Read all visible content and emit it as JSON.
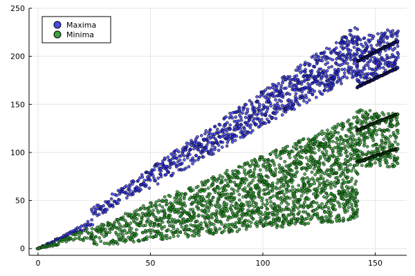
{
  "chart_data": {
    "type": "scatter",
    "title": "",
    "xlabel": "",
    "ylabel": "",
    "xlim": [
      -4,
      164
    ],
    "ylim": [
      -7,
      250
    ],
    "xticks": [
      0,
      50,
      100,
      150
    ],
    "yticks": [
      0,
      50,
      100,
      150,
      200,
      250
    ],
    "grid": true,
    "legend_position": "top-left",
    "series": [
      {
        "name": "Maxima",
        "color": "#2a2ae0",
        "description_points": [
          {
            "x": 0,
            "y": 0
          },
          {
            "x": 10,
            "y": 12
          },
          {
            "x": 24,
            "y": 30
          },
          {
            "x": 50,
            "y": 72
          },
          {
            "x": 75,
            "y": 113
          },
          {
            "x": 100,
            "y": 158
          },
          {
            "x": 125,
            "y": 195
          },
          {
            "x": 140,
            "y": 225
          },
          {
            "x": 160,
            "y": 216
          }
        ],
        "bands": [
          {
            "x": [
              0,
              24
            ],
            "low": [
              0,
              22
            ],
            "high": [
              0,
              30
            ]
          },
          {
            "x": [
              24,
              142
            ],
            "low": [
              30,
              180
            ],
            "high": [
              42,
              232
            ]
          },
          {
            "x": [
              142,
              160
            ],
            "low": [
              170,
              190
            ],
            "high": [
              220,
              230
            ]
          }
        ],
        "upper_branch": [
          {
            "x": 142,
            "y": 195
          },
          {
            "x": 160,
            "y": 216
          }
        ],
        "lower_branch": [
          {
            "x": 142,
            "y": 168
          },
          {
            "x": 160,
            "y": 188
          }
        ]
      },
      {
        "name": "Minima",
        "color": "#1f8f1f",
        "bands": [
          {
            "x": [
              0,
              24
            ],
            "low": [
              0,
              10
            ],
            "high": [
              0,
              23
            ]
          },
          {
            "x": [
              24,
              142
            ],
            "low": [
              2,
              30
            ],
            "high": [
              22,
              138
            ]
          },
          {
            "x": [
              142,
              160
            ],
            "low": [
              85,
              85
            ],
            "high": [
              145,
              140
            ]
          }
        ],
        "upper_branch": [
          {
            "x": 142,
            "y": 123
          },
          {
            "x": 160,
            "y": 140
          }
        ],
        "lower_branch": [
          {
            "x": 142,
            "y": 90
          },
          {
            "x": 160,
            "y": 104
          }
        ]
      }
    ]
  }
}
